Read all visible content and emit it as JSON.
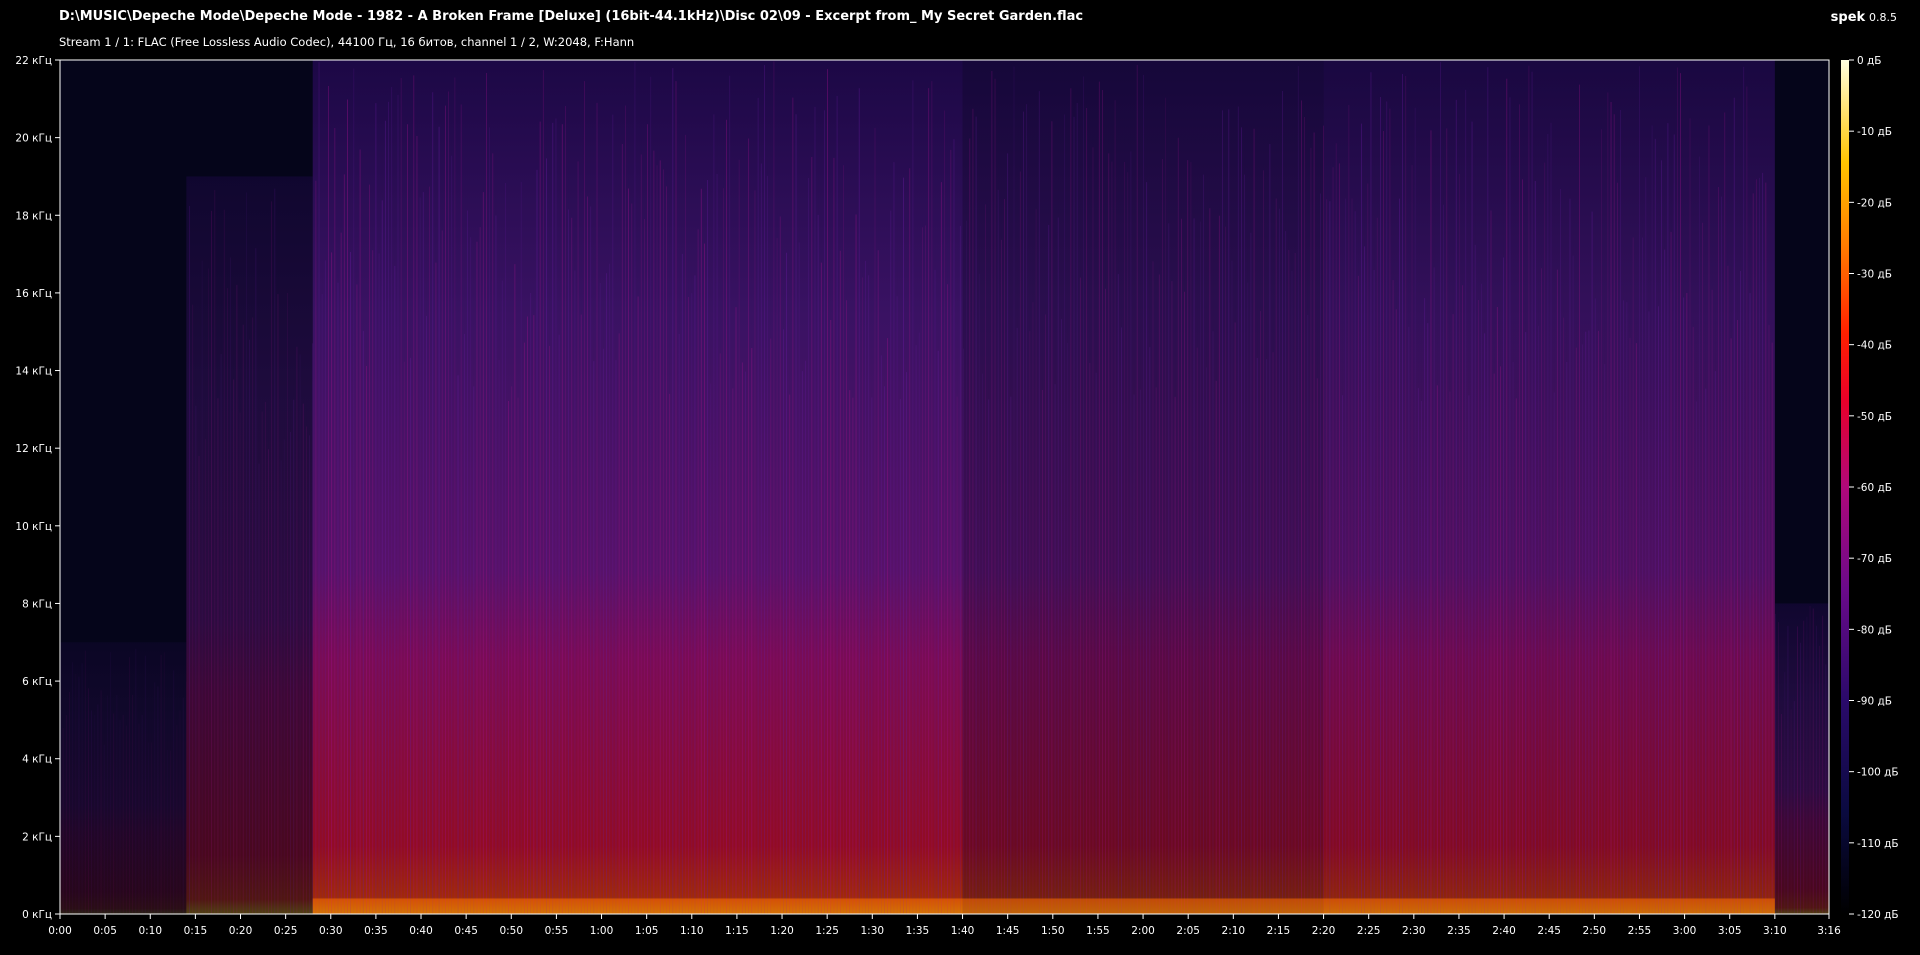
{
  "header": {
    "file_path": "D:\\MUSIC\\Depeche Mode\\Depeche Mode - 1982 - A Broken Frame [Deluxe] (16bit-44.1kHz)\\Disc 02\\09 - Excerpt from_ My Secret Garden.flac",
    "stream_info": "Stream 1 / 1: FLAC (Free Lossless Audio Codec), 44100 Гц, 16 битов, channel 1 / 2, W:2048, F:Hann",
    "app_name": "spek",
    "app_version": "0.8.5"
  },
  "chart_data": {
    "type": "heatmap",
    "x_ticks": [
      "0:00",
      "0:05",
      "0:10",
      "0:15",
      "0:20",
      "0:25",
      "0:30",
      "0:35",
      "0:40",
      "0:45",
      "0:50",
      "0:55",
      "1:00",
      "1:05",
      "1:10",
      "1:15",
      "1:20",
      "1:25",
      "1:30",
      "1:35",
      "1:40",
      "1:45",
      "1:50",
      "1:55",
      "2:00",
      "2:05",
      "2:10",
      "2:15",
      "2:20",
      "2:25",
      "2:30",
      "2:35",
      "2:40",
      "2:45",
      "2:50",
      "2:55",
      "3:00",
      "3:05",
      "3:10",
      "3:16"
    ],
    "y_ticks": [
      "0 кГц",
      "2 кГц",
      "4 кГц",
      "6 кГц",
      "8 кГц",
      "10 кГц",
      "12 кГц",
      "14 кГц",
      "16 кГц",
      "18 кГц",
      "20 кГц",
      "22 кГц"
    ],
    "colorbar_ticks": [
      "0 дБ",
      "-10 дБ",
      "-20 дБ",
      "-30 дБ",
      "-40 дБ",
      "-50 дБ",
      "-60 дБ",
      "-70 дБ",
      "-80 дБ",
      "-90 дБ",
      "-100 дБ",
      "-110 дБ",
      "-120 дБ"
    ],
    "duration_s": 196,
    "freq_max_khz": 22,
    "db_range": [
      -120,
      0
    ],
    "colors": {
      "low": "#000000",
      "mid_low": "#3a0a6a",
      "mid": "#8a1a9a",
      "mid_high": "#e0103a",
      "high": "#ff6a00",
      "top": "#ffffc0"
    },
    "segments": [
      {
        "start_s": 0,
        "end_s": 14,
        "level": 0.15,
        "cutoff_khz": 7
      },
      {
        "start_s": 14,
        "end_s": 28,
        "level": 0.3,
        "cutoff_khz": 19
      },
      {
        "start_s": 28,
        "end_s": 100,
        "level": 0.62,
        "cutoff_khz": 22
      },
      {
        "start_s": 100,
        "end_s": 140,
        "level": 0.45,
        "cutoff_khz": 22
      },
      {
        "start_s": 140,
        "end_s": 190,
        "level": 0.55,
        "cutoff_khz": 22
      },
      {
        "start_s": 190,
        "end_s": 196,
        "level": 0.3,
        "cutoff_khz": 8
      }
    ]
  }
}
